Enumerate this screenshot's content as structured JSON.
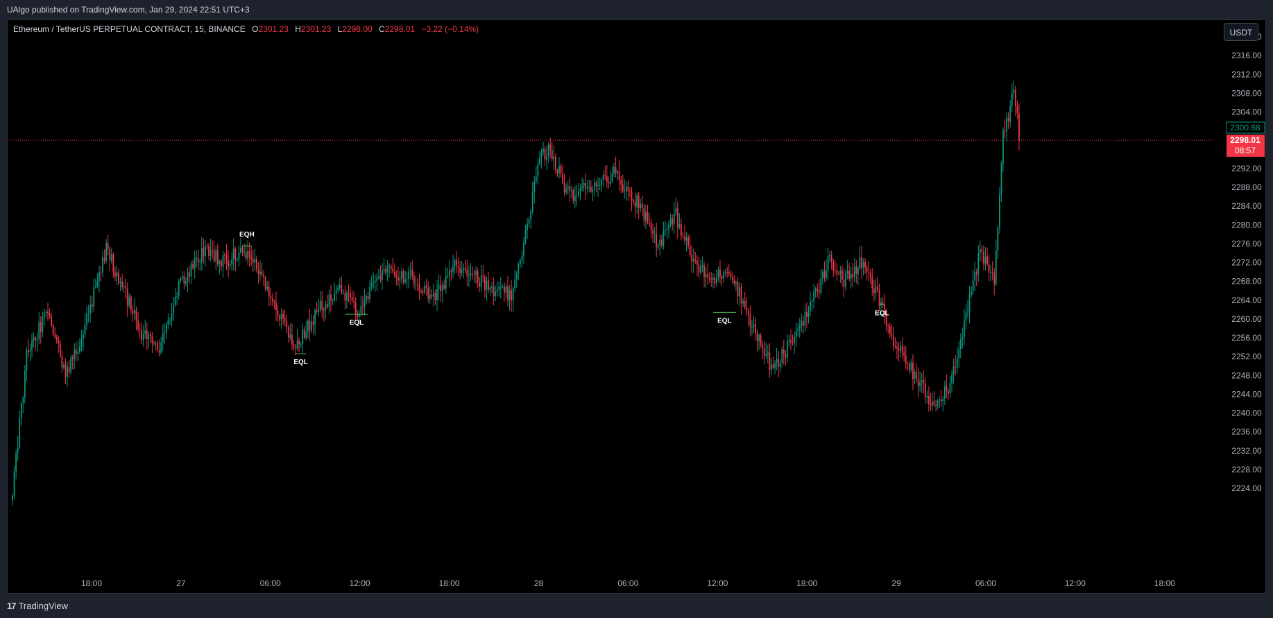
{
  "header": {
    "publish_text": "UAlgo published on TradingView.com, Jan 29, 2024 22:51 UTC+3"
  },
  "legend": {
    "symbol": "Ethereum / TetherUS PERPETUAL CONTRACT, 15, BINANCE",
    "o_label": "O",
    "o_value": "2301.23",
    "h_label": "H",
    "h_value": "2301.23",
    "l_label": "L",
    "l_value": "2298.00",
    "c_label": "C",
    "c_value": "2298.01",
    "change": "−3.22 (−0.14%)"
  },
  "currency_button": "USDT",
  "footer": {
    "brand_logo": "17",
    "brand_name": "TradingView"
  },
  "colors": {
    "up": "#089981",
    "down": "#f23645",
    "background": "#000000",
    "annotation": "#4caf50"
  },
  "chart_data": {
    "type": "candlestick",
    "timeframe": "15",
    "ylim": [
      2222,
      2322
    ],
    "y_ticks": [
      "2224.00",
      "2228.00",
      "2232.00",
      "2236.00",
      "2240.00",
      "2244.00",
      "2248.00",
      "2252.00",
      "2256.00",
      "2260.00",
      "2264.00",
      "2268.00",
      "2272.00",
      "2276.00",
      "2280.00",
      "2284.00",
      "2288.00",
      "2292.00",
      "2304.00",
      "2308.00",
      "2312.00",
      "2316.00",
      "2320.00"
    ],
    "x_ticks": [
      "18:00",
      "27",
      "06:00",
      "12:00",
      "18:00",
      "28",
      "06:00",
      "12:00",
      "18:00",
      "29",
      "06:00",
      "12:00",
      "18:00"
    ],
    "price_labels": {
      "current_price": "2298.01",
      "countdown": "08:57",
      "other_price": "2300.68"
    },
    "current_price_value": 2298.01,
    "other_price_value": 2300.68,
    "anchors": [
      [
        0,
        2223
      ],
      [
        8,
        2252
      ],
      [
        20,
        2262
      ],
      [
        30,
        2248
      ],
      [
        40,
        2257
      ],
      [
        53,
        2275
      ],
      [
        63,
        2266
      ],
      [
        73,
        2257
      ],
      [
        83,
        2254
      ],
      [
        95,
        2268
      ],
      [
        110,
        2275
      ],
      [
        120,
        2272
      ],
      [
        130,
        2275
      ],
      [
        140,
        2270
      ],
      [
        150,
        2262
      ],
      [
        160,
        2254
      ],
      [
        175,
        2263
      ],
      [
        185,
        2266
      ],
      [
        195,
        2262
      ],
      [
        210,
        2270
      ],
      [
        225,
        2269
      ],
      [
        238,
        2264
      ],
      [
        250,
        2272
      ],
      [
        260,
        2270
      ],
      [
        270,
        2266
      ],
      [
        283,
        2265
      ],
      [
        298,
        2294
      ],
      [
        303,
        2296
      ],
      [
        315,
        2286
      ],
      [
        325,
        2288
      ],
      [
        340,
        2291
      ],
      [
        355,
        2284
      ],
      [
        365,
        2276
      ],
      [
        375,
        2282
      ],
      [
        385,
        2272
      ],
      [
        395,
        2268
      ],
      [
        405,
        2271
      ],
      [
        420,
        2257
      ],
      [
        430,
        2249
      ],
      [
        440,
        2255
      ],
      [
        455,
        2266
      ],
      [
        462,
        2273
      ],
      [
        470,
        2268
      ],
      [
        480,
        2272
      ],
      [
        490,
        2264
      ],
      [
        498,
        2255
      ],
      [
        510,
        2248
      ],
      [
        520,
        2242
      ],
      [
        530,
        2246
      ],
      [
        547,
        2274
      ],
      [
        555,
        2268
      ],
      [
        560,
        2299
      ],
      [
        566,
        2308
      ],
      [
        569,
        2302
      ]
    ],
    "annotations": [
      {
        "label": "EQH",
        "x": 130,
        "y": 2275.5,
        "width": 5
      },
      {
        "label": "EQL",
        "x": 160,
        "y": 2252.6,
        "width": 6
      },
      {
        "label": "EQL",
        "x": 188,
        "y": 2261.0,
        "width": 13
      },
      {
        "label": "EQL",
        "x": 396,
        "y": 2261.4,
        "width": 13
      },
      {
        "label": "EQL",
        "x": 490,
        "y": 2263.0,
        "width": 3
      }
    ]
  }
}
